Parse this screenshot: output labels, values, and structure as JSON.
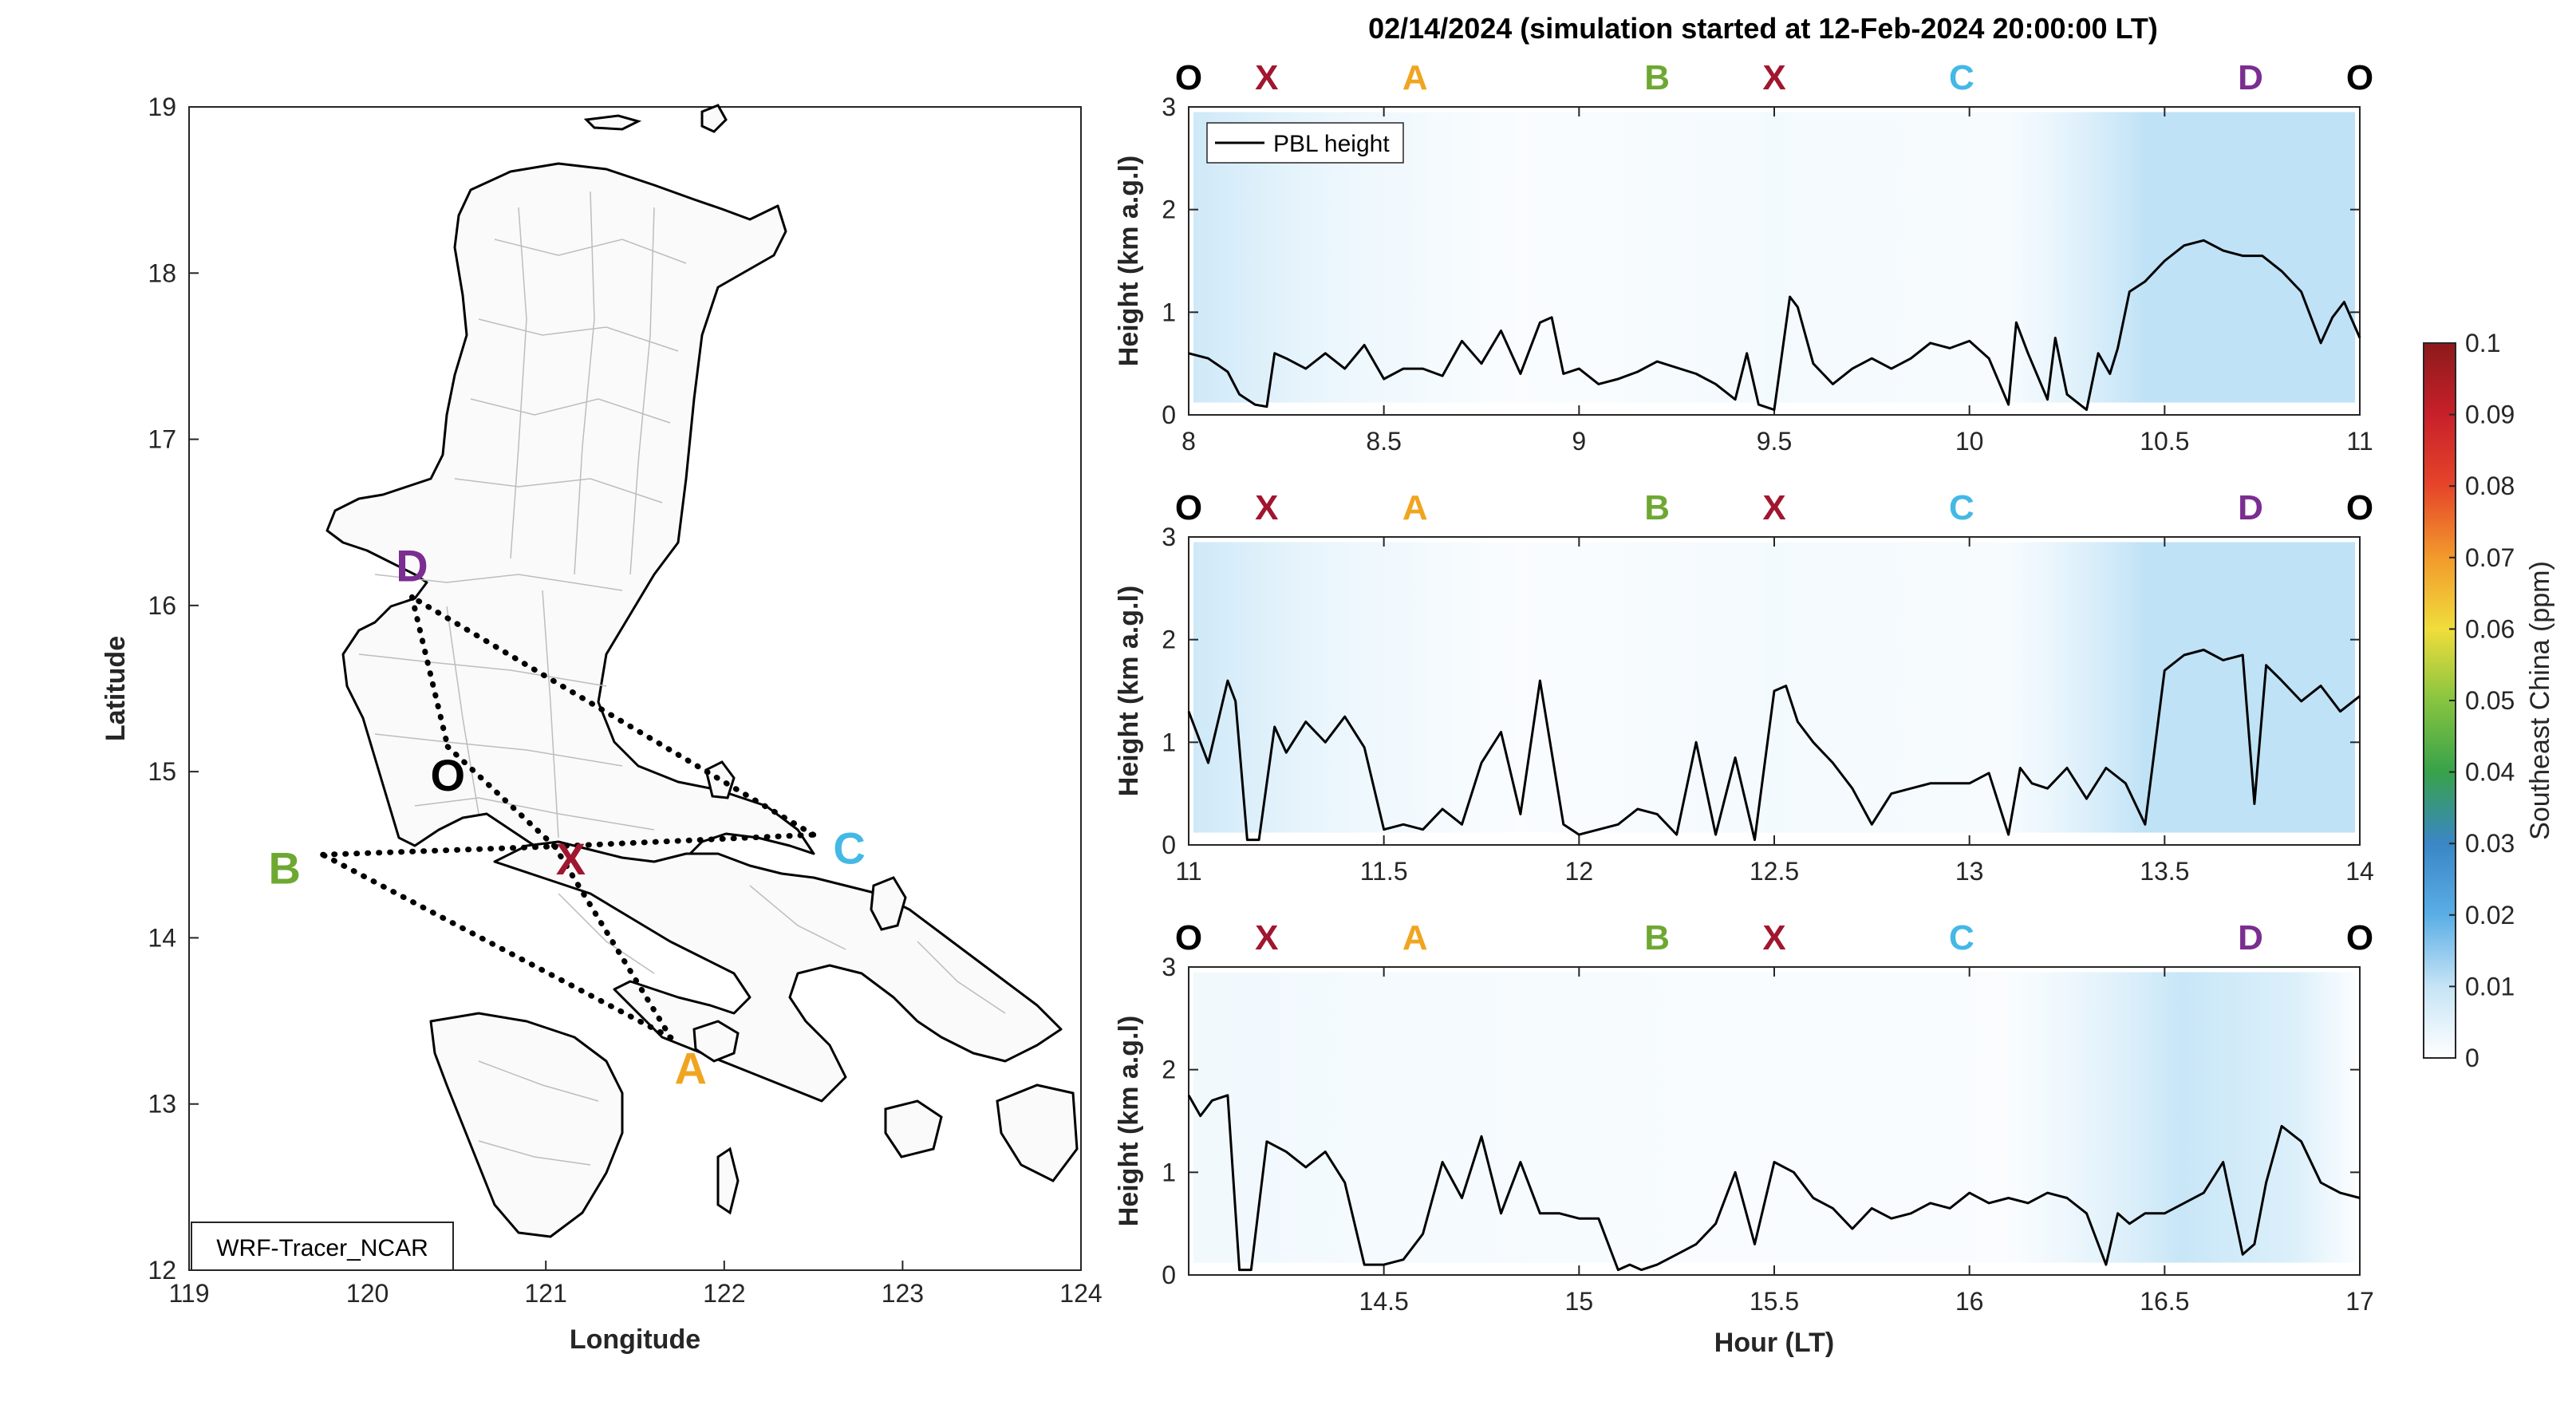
{
  "title": "02/14/2024 (simulation started at 12-Feb-2024 20:00:00 LT)",
  "colors": {
    "O": "#000000",
    "X": "#a1162f",
    "A": "#f0a520",
    "B": "#6ea832",
    "C": "#44b8e6",
    "D": "#7b2d91"
  },
  "map": {
    "xlabel": "Longitude",
    "ylabel": "Latitude",
    "xlim": [
      119,
      124
    ],
    "ylim": [
      12,
      19
    ],
    "xticks": [
      "119",
      "120",
      "121",
      "122",
      "123",
      "124"
    ],
    "yticks": [
      "12",
      "13",
      "14",
      "15",
      "16",
      "17",
      "18",
      "19"
    ],
    "label_box": "WRF-Tracer_NCAR",
    "points": [
      {
        "name": "D",
        "lon": 120.25,
        "lat": 16.05
      },
      {
        "name": "O",
        "lon": 120.45,
        "lat": 15.15
      },
      {
        "name": "X",
        "lon": 121.05,
        "lat": 14.55
      },
      {
        "name": "B",
        "lon": 119.75,
        "lat": 14.5
      },
      {
        "name": "C",
        "lon": 122.5,
        "lat": 14.62
      },
      {
        "name": "A",
        "lon": 121.7,
        "lat": 13.4
      }
    ],
    "route": [
      [
        "D",
        "O"
      ],
      [
        "O",
        "X"
      ],
      [
        "X",
        "A"
      ],
      [
        "A",
        "B"
      ],
      [
        "B",
        "X"
      ],
      [
        "X",
        "C"
      ],
      [
        "C",
        "D"
      ]
    ]
  },
  "chart_data": [
    {
      "type": "line",
      "xlim": [
        8,
        11
      ],
      "ylim": [
        0,
        3
      ],
      "xticks": [
        "8",
        "8.5",
        "9",
        "9.5",
        "10",
        "10.5",
        "11"
      ],
      "yticks": [
        "0",
        "1",
        "2",
        "3"
      ],
      "ylabel": "Height (km a.g.l)",
      "legend": "PBL height",
      "waypoints": [
        {
          "label": "O",
          "x": 8.0
        },
        {
          "label": "X",
          "x": 8.2
        },
        {
          "label": "A",
          "x": 8.58
        },
        {
          "label": "B",
          "x": 9.2
        },
        {
          "label": "X",
          "x": 9.5
        },
        {
          "label": "C",
          "x": 9.98
        },
        {
          "label": "D",
          "x": 10.72
        },
        {
          "label": "O",
          "x": 11.0
        }
      ],
      "pbl": {
        "x": [
          8.0,
          8.05,
          8.1,
          8.13,
          8.17,
          8.2,
          8.22,
          8.25,
          8.3,
          8.35,
          8.4,
          8.45,
          8.5,
          8.55,
          8.6,
          8.65,
          8.7,
          8.75,
          8.8,
          8.85,
          8.9,
          8.93,
          8.96,
          9.0,
          9.05,
          9.1,
          9.15,
          9.2,
          9.3,
          9.35,
          9.4,
          9.43,
          9.46,
          9.5,
          9.54,
          9.56,
          9.6,
          9.65,
          9.7,
          9.75,
          9.8,
          9.85,
          9.9,
          9.95,
          10.0,
          10.05,
          10.1,
          10.12,
          10.15,
          10.2,
          10.22,
          10.25,
          10.3,
          10.33,
          10.36,
          10.38,
          10.41,
          10.45,
          10.5,
          10.55,
          10.6,
          10.65,
          10.7,
          10.75,
          10.8,
          10.85,
          10.9,
          10.93,
          10.96,
          11.0
        ],
        "y": [
          0.6,
          0.55,
          0.42,
          0.2,
          0.1,
          0.08,
          0.6,
          0.55,
          0.45,
          0.6,
          0.45,
          0.68,
          0.35,
          0.45,
          0.45,
          0.38,
          0.72,
          0.5,
          0.82,
          0.4,
          0.9,
          0.95,
          0.4,
          0.45,
          0.3,
          0.35,
          0.42,
          0.52,
          0.4,
          0.3,
          0.15,
          0.6,
          0.1,
          0.05,
          1.15,
          1.05,
          0.5,
          0.3,
          0.45,
          0.55,
          0.45,
          0.55,
          0.7,
          0.65,
          0.72,
          0.55,
          0.1,
          0.9,
          0.6,
          0.15,
          0.75,
          0.2,
          0.05,
          0.6,
          0.4,
          0.65,
          1.2,
          1.3,
          1.5,
          1.65,
          1.7,
          1.6,
          1.55,
          1.55,
          1.4,
          1.2,
          0.7,
          0.95,
          1.1,
          0.75
        ]
      }
    },
    {
      "type": "line",
      "xlim": [
        11,
        14
      ],
      "ylim": [
        0,
        3
      ],
      "xticks": [
        "11",
        "11.5",
        "12",
        "12.5",
        "13",
        "13.5",
        "14"
      ],
      "yticks": [
        "0",
        "1",
        "2",
        "3"
      ],
      "ylabel": "Height (km a.g.l)",
      "waypoints": [
        {
          "label": "O",
          "x": 11.0
        },
        {
          "label": "X",
          "x": 11.2
        },
        {
          "label": "A",
          "x": 11.58
        },
        {
          "label": "B",
          "x": 12.2
        },
        {
          "label": "X",
          "x": 12.5
        },
        {
          "label": "C",
          "x": 12.98
        },
        {
          "label": "D",
          "x": 13.72
        },
        {
          "label": "O",
          "x": 14.0
        }
      ],
      "pbl": {
        "x": [
          11.0,
          11.05,
          11.1,
          11.12,
          11.15,
          11.18,
          11.22,
          11.25,
          11.3,
          11.35,
          11.4,
          11.45,
          11.5,
          11.55,
          11.6,
          11.65,
          11.7,
          11.75,
          11.8,
          11.85,
          11.9,
          11.93,
          11.96,
          12.0,
          12.05,
          12.1,
          12.15,
          12.2,
          12.25,
          12.3,
          12.35,
          12.4,
          12.45,
          12.5,
          12.53,
          12.56,
          12.6,
          12.65,
          12.7,
          12.75,
          12.8,
          12.85,
          12.9,
          12.95,
          13.0,
          13.05,
          13.1,
          13.13,
          13.16,
          13.2,
          13.25,
          13.3,
          13.35,
          13.4,
          13.45,
          13.5,
          13.55,
          13.6,
          13.65,
          13.7,
          13.73,
          13.76,
          13.8,
          13.85,
          13.9,
          13.95,
          14.0
        ],
        "y": [
          1.3,
          0.8,
          1.6,
          1.4,
          0.05,
          0.05,
          1.15,
          0.9,
          1.2,
          1.0,
          1.25,
          0.95,
          0.15,
          0.2,
          0.15,
          0.35,
          0.2,
          0.8,
          1.1,
          0.3,
          1.6,
          0.9,
          0.2,
          0.1,
          0.15,
          0.2,
          0.35,
          0.3,
          0.1,
          1.0,
          0.1,
          0.85,
          0.05,
          1.5,
          1.55,
          1.2,
          1.0,
          0.8,
          0.55,
          0.2,
          0.5,
          0.55,
          0.6,
          0.6,
          0.6,
          0.7,
          0.1,
          0.75,
          0.6,
          0.55,
          0.75,
          0.45,
          0.75,
          0.6,
          0.2,
          1.7,
          1.85,
          1.9,
          1.8,
          1.85,
          0.4,
          1.75,
          1.6,
          1.4,
          1.55,
          1.3,
          1.45
        ]
      }
    },
    {
      "type": "line",
      "xlim": [
        14,
        17
      ],
      "ylim": [
        0,
        3
      ],
      "xticks": [
        "14.5",
        "15",
        "15.5",
        "16",
        "16.5",
        "17"
      ],
      "yticks": [
        "0",
        "1",
        "2",
        "3"
      ],
      "ylabel": "Height (km a.g.l)",
      "xlabel": "Hour (LT)",
      "waypoints": [
        {
          "label": "O",
          "x": 14.0
        },
        {
          "label": "X",
          "x": 14.2
        },
        {
          "label": "A",
          "x": 14.58
        },
        {
          "label": "B",
          "x": 15.2
        },
        {
          "label": "X",
          "x": 15.5
        },
        {
          "label": "C",
          "x": 15.98
        },
        {
          "label": "D",
          "x": 16.72
        },
        {
          "label": "O",
          "x": 17.0
        }
      ],
      "pbl": {
        "x": [
          14.0,
          14.03,
          14.06,
          14.1,
          14.13,
          14.16,
          14.2,
          14.25,
          14.3,
          14.35,
          14.4,
          14.45,
          14.5,
          14.55,
          14.6,
          14.65,
          14.7,
          14.75,
          14.8,
          14.85,
          14.9,
          14.95,
          15.0,
          15.05,
          15.1,
          15.13,
          15.16,
          15.2,
          15.25,
          15.3,
          15.35,
          15.4,
          15.45,
          15.5,
          15.55,
          15.6,
          15.65,
          15.7,
          15.75,
          15.8,
          15.85,
          15.9,
          15.95,
          16.0,
          16.05,
          16.1,
          16.15,
          16.2,
          16.25,
          16.3,
          16.35,
          16.38,
          16.41,
          16.45,
          16.5,
          16.55,
          16.6,
          16.65,
          16.7,
          16.73,
          16.76,
          16.8,
          16.85,
          16.9,
          16.95,
          17.0
        ],
        "y": [
          1.75,
          1.55,
          1.7,
          1.75,
          0.05,
          0.05,
          1.3,
          1.2,
          1.05,
          1.2,
          0.9,
          0.1,
          0.1,
          0.15,
          0.4,
          1.1,
          0.75,
          1.35,
          0.6,
          1.1,
          0.6,
          0.6,
          0.55,
          0.55,
          0.05,
          0.1,
          0.05,
          0.1,
          0.2,
          0.3,
          0.5,
          1.0,
          0.3,
          1.1,
          1.0,
          0.75,
          0.65,
          0.45,
          0.65,
          0.55,
          0.6,
          0.7,
          0.65,
          0.8,
          0.7,
          0.75,
          0.7,
          0.8,
          0.75,
          0.6,
          0.1,
          0.6,
          0.5,
          0.6,
          0.6,
          0.7,
          0.8,
          1.1,
          0.2,
          0.3,
          0.9,
          1.45,
          1.3,
          0.9,
          0.8,
          0.75
        ]
      }
    }
  ],
  "colorbar": {
    "label": "Southeast China (ppm)",
    "ticks": [
      "0",
      "0.01",
      "0.02",
      "0.03",
      "0.04",
      "0.05",
      "0.06",
      "0.07",
      "0.08",
      "0.09",
      "0.1"
    ],
    "range": [
      0,
      0.1
    ]
  }
}
